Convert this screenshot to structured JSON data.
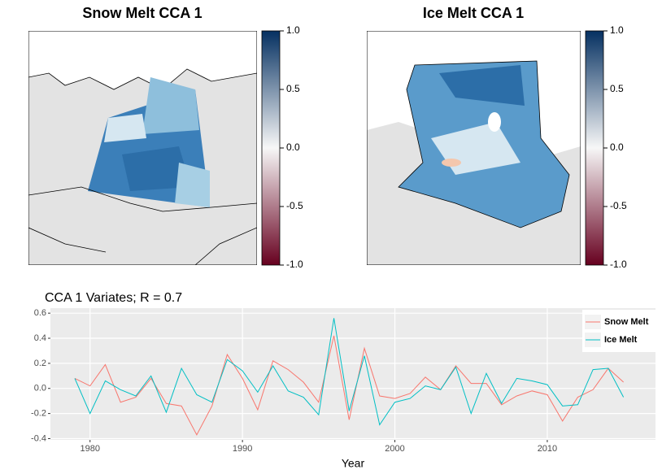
{
  "chart_data": [
    {
      "type": "map",
      "title": "Snow Melt CCA 1",
      "colorbar": {
        "lim": [
          -1,
          1
        ],
        "colors": [
          "#67001f",
          "#f7f7f7",
          "#053061"
        ],
        "ticks": [
          {
            "value": 1,
            "label": "1.0"
          },
          0.5,
          {
            "value": 0,
            "label": "0.0"
          },
          -0.5,
          {
            "value": -1,
            "label": "-1.0"
          }
        ]
      }
    },
    {
      "type": "map",
      "title": "Ice Melt CCA 1",
      "colorbar": {
        "lim": [
          -1,
          1
        ],
        "colors": [
          "#67001f",
          "#f7f7f7",
          "#053061"
        ],
        "ticks": [
          {
            "value": 1,
            "label": "1.0"
          },
          0.5,
          {
            "value": 0,
            "label": "0.0"
          },
          -0.5,
          {
            "value": -1,
            "label": "-1.0"
          }
        ]
      }
    },
    {
      "type": "line",
      "title": "CCA 1 Variates; R = 0.7",
      "x_label": "Year",
      "x": [
        1979,
        1980,
        1981,
        1982,
        1983,
        1984,
        1985,
        1986,
        1987,
        1988,
        1989,
        1990,
        1991,
        1992,
        1993,
        1994,
        1995,
        1996,
        1997,
        1998,
        1999,
        2000,
        2001,
        2002,
        2003,
        2004,
        2005,
        2006,
        2007,
        2008,
        2009,
        2010,
        2011,
        2012,
        2013,
        2014,
        2015
      ],
      "series": [
        {
          "name": "Snow Melt",
          "color": "#f8766d",
          "values": [
            0.08,
            0.02,
            0.19,
            -0.11,
            -0.07,
            0.08,
            -0.12,
            -0.14,
            -0.37,
            -0.14,
            0.27,
            0.08,
            -0.17,
            0.22,
            0.15,
            0.05,
            -0.11,
            0.42,
            -0.25,
            0.32,
            -0.06,
            -0.08,
            -0.04,
            0.09,
            -0.01,
            0.18,
            0.04,
            0.04,
            -0.13,
            -0.06,
            -0.02,
            -0.05,
            -0.26,
            -0.07,
            -0.01,
            0.16,
            0.05
          ]
        },
        {
          "name": "Ice Melt",
          "color": "#00bfc4",
          "values": [
            0.08,
            -0.2,
            0.06,
            -0.01,
            -0.06,
            0.1,
            -0.19,
            0.16,
            -0.05,
            -0.11,
            0.23,
            0.14,
            -0.03,
            0.18,
            -0.02,
            -0.07,
            -0.21,
            0.56,
            -0.18,
            0.26,
            -0.29,
            -0.11,
            -0.08,
            0.02,
            -0.01,
            0.17,
            -0.2,
            0.12,
            -0.12,
            0.08,
            0.06,
            0.03,
            -0.14,
            -0.13,
            0.15,
            0.16,
            -0.07
          ]
        }
      ],
      "xlim": [
        1977.4,
        2017.1
      ],
      "xticks": [
        1980,
        1990,
        2000,
        2010
      ],
      "ylim": [
        -0.41,
        0.64
      ],
      "yticks": [
        0.6,
        0.4,
        0.2,
        {
          "value": 0,
          "label": "0.0"
        },
        -0.2,
        -0.4
      ],
      "grid": true,
      "legend": "top-right"
    }
  ]
}
